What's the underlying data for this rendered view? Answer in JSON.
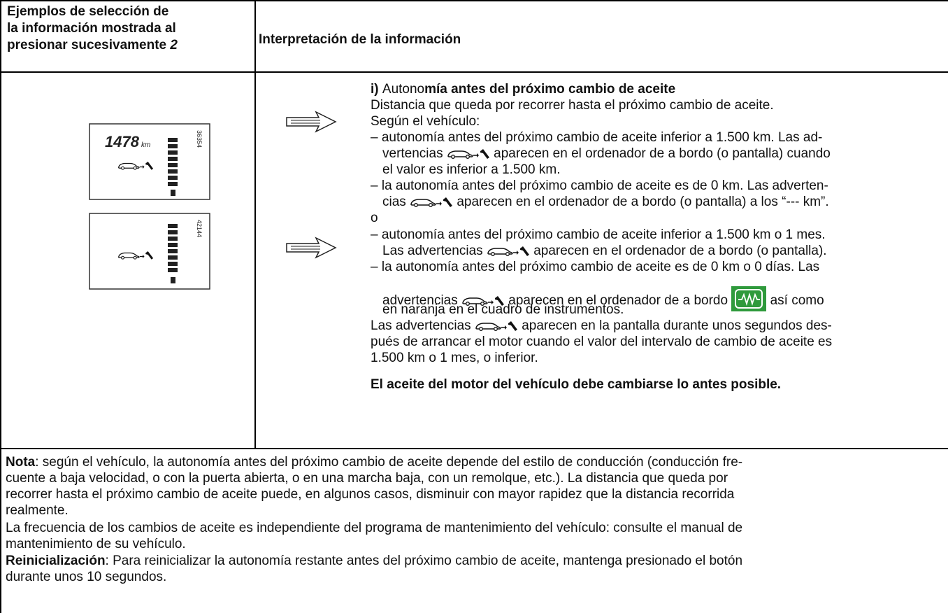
{
  "header": {
    "left": [
      "Ejemplos de selección de",
      "la información mostrada al",
      "presionar sucesivamente "
    ],
    "left_button": "2",
    "right": "Interpretación de la información"
  },
  "displays": [
    {
      "reading": "1478",
      "unit": "km",
      "code": "36354"
    },
    {
      "code": "42144"
    }
  ],
  "info": {
    "lines": [
      [
        "i) ",
        "Autono",
        "mía antes del próximo cambio de aceite"
      ],
      [
        "Distancia que queda por recorrer hasta el próximo cambio de aceite."
      ],
      [
        "Según el vehículo:"
      ],
      [
        "– autonomía antes del próximo cambio de aceite inferior a 1.500 km. Las ad-"
      ],
      [
        "vertencias ",
        " aparecen en el ordenador de a bordo (o pantalla) cuando"
      ],
      [
        "el valor es inferior a 1.500 km."
      ],
      [
        "– la autonomía antes del próximo cambio de aceite es de 0 km. Las adverten-"
      ],
      [
        "cias ",
        " aparecen en el ordenador de a bordo (o pantalla) a los “--- km”."
      ],
      [
        "o"
      ],
      [
        "– autonomía antes del próximo cambio de aceite inferior a 1.500 km o 1 mes."
      ],
      [
        "Las advertencias ",
        " aparecen en el ordenador de a bordo (o pantalla)."
      ],
      [
        "– la autonomía antes del próximo cambio de aceite es de 0 km o 0 días. Las"
      ],
      [
        "advertencias ",
        " aparecen en el ordenador de a bordo ",
        " así como"
      ],
      [
        "en naranja en el cuadro de instrumentos."
      ],
      [
        "Las advertencias ",
        " aparecen en la pantalla durante unos segundos des-"
      ],
      [
        "pués de arrancar el motor cuando el valor del intervalo de cambio de aceite es"
      ],
      [
        "1.500 km o 1 mes, o inferior."
      ],
      [
        "El aceite del motor del vehículo debe cambiarse lo antes posible."
      ]
    ]
  },
  "note": {
    "lines": [
      [
        "Nota",
        ": según el vehículo, la autonomía antes del próximo cambio de aceite depende del estilo de conducción (conducción fre-"
      ],
      [
        "cuente a baja velocidad, o con la puerta abierta, o en una marcha baja, con un remolque, etc.). La distancia que queda por"
      ],
      [
        "recorrer hasta el próximo cambio de aceite puede, en algunos casos, disminuir con mayor rapidez que la distancia recorrida"
      ],
      [
        "realmente."
      ],
      [
        "La frecuencia de los cambios de aceite es independiente del programa de mantenimiento del vehículo: consulte el manual de"
      ],
      [
        "mantenimiento de su vehículo."
      ],
      [
        "Reinicialización",
        ": Para reinicializar la autonomía restante antes del próximo cambio de aceite, mantenga presionado el botón"
      ],
      [
        "durante unos 10 segundos."
      ]
    ]
  }
}
